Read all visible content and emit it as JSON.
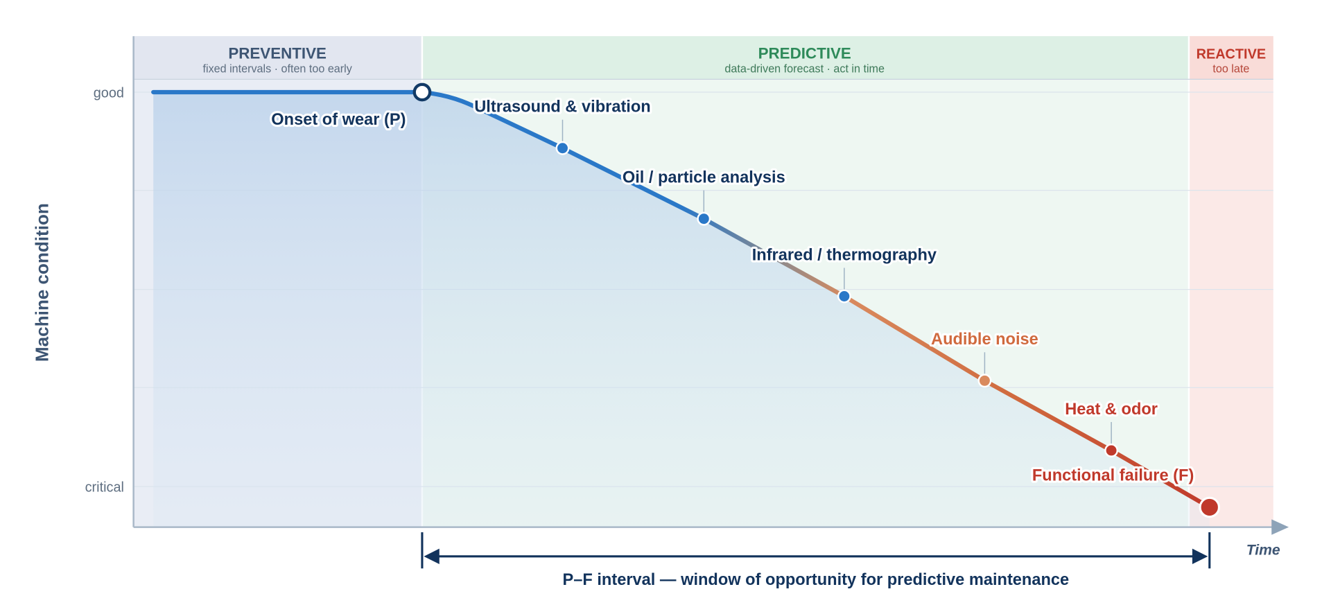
{
  "zones": [
    {
      "title": "PREVENTIVE",
      "subtitle": "fixed intervals · often too early"
    },
    {
      "title": "PREDICTIVE",
      "subtitle": "data-driven forecast · act in time"
    },
    {
      "title": "REACTIVE",
      "subtitle": "too late"
    }
  ],
  "y_axis": {
    "title": "Machine condition",
    "top_label": "good",
    "bottom_label": "critical"
  },
  "x_axis": {
    "title": "Time"
  },
  "onset_label": "Onset of wear (P)",
  "signals": [
    {
      "label": "Ultrasound & vibration"
    },
    {
      "label": "Oil / particle analysis"
    },
    {
      "label": "Infrared / thermography"
    },
    {
      "label": "Audible noise"
    },
    {
      "label": "Heat & odor"
    }
  ],
  "failure_label": "Functional failure (F)",
  "interval_label": "P–F interval — window of opportunity for predictive maintenance"
}
